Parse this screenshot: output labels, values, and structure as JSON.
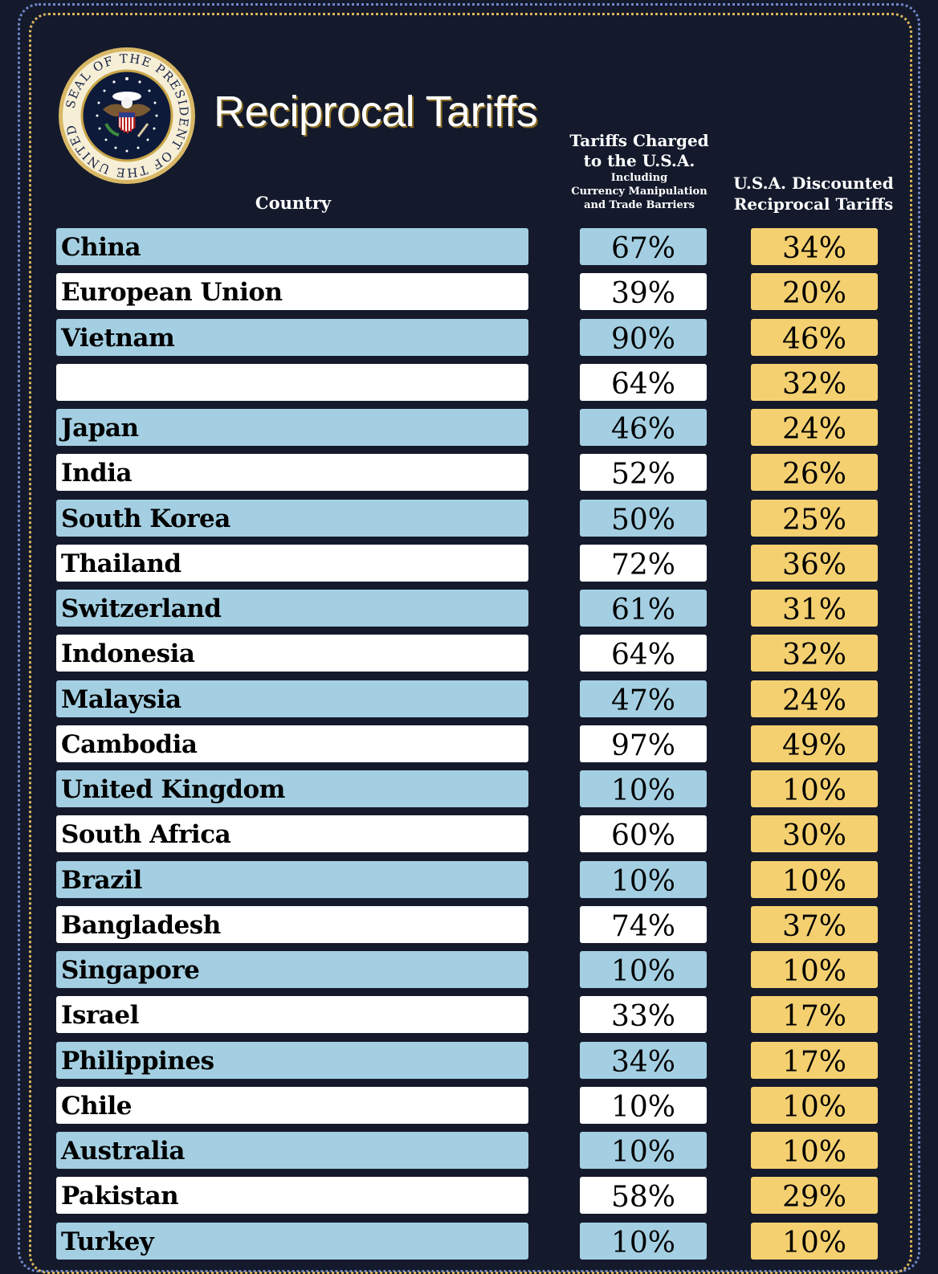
{
  "title": "Reciprocal Tariffs",
  "seal": {
    "text": "SEAL OF THE PRESIDENT OF THE UNITED STATES"
  },
  "headers": {
    "country": "Country",
    "charged_line1": "Tariffs Charged",
    "charged_line2": "to the U.S.A.",
    "charged_line3": "Including",
    "charged_line4": "Currency Manipulation",
    "charged_line5": "and Trade Barriers",
    "discount_line1": "U.S.A. Discounted",
    "discount_line2": "Reciprocal Tariffs"
  },
  "rows": [
    {
      "country": "China",
      "charged": "67%",
      "discounted": "34%"
    },
    {
      "country": "European Union",
      "charged": "39%",
      "discounted": "20%"
    },
    {
      "country": "Vietnam",
      "charged": "90%",
      "discounted": "46%"
    },
    {
      "country": "",
      "charged": "64%",
      "discounted": "32%"
    },
    {
      "country": "Japan",
      "charged": "46%",
      "discounted": "24%"
    },
    {
      "country": "India",
      "charged": "52%",
      "discounted": "26%"
    },
    {
      "country": "South Korea",
      "charged": "50%",
      "discounted": "25%"
    },
    {
      "country": "Thailand",
      "charged": "72%",
      "discounted": "36%"
    },
    {
      "country": "Switzerland",
      "charged": "61%",
      "discounted": "31%"
    },
    {
      "country": "Indonesia",
      "charged": "64%",
      "discounted": "32%"
    },
    {
      "country": "Malaysia",
      "charged": "47%",
      "discounted": "24%"
    },
    {
      "country": "Cambodia",
      "charged": "97%",
      "discounted": "49%"
    },
    {
      "country": "United Kingdom",
      "charged": "10%",
      "discounted": "10%"
    },
    {
      "country": "South Africa",
      "charged": "60%",
      "discounted": "30%"
    },
    {
      "country": "Brazil",
      "charged": "10%",
      "discounted": "10%"
    },
    {
      "country": "Bangladesh",
      "charged": "74%",
      "discounted": "37%"
    },
    {
      "country": "Singapore",
      "charged": "10%",
      "discounted": "10%"
    },
    {
      "country": "Israel",
      "charged": "33%",
      "discounted": "17%"
    },
    {
      "country": "Philippines",
      "charged": "34%",
      "discounted": "17%"
    },
    {
      "country": "Chile",
      "charged": "10%",
      "discounted": "10%"
    },
    {
      "country": "Australia",
      "charged": "10%",
      "discounted": "10%"
    },
    {
      "country": "Pakistan",
      "charged": "58%",
      "discounted": "29%"
    },
    {
      "country": "Turkey",
      "charged": "10%",
      "discounted": "10%"
    }
  ],
  "colors": {
    "background": "#141a2c",
    "row_blue": "#a4cfe2",
    "row_white": "#ffffff",
    "discount_yellow": "#f4d070",
    "frame_blue": "#6f87c9",
    "frame_gold": "#d9b45a"
  }
}
